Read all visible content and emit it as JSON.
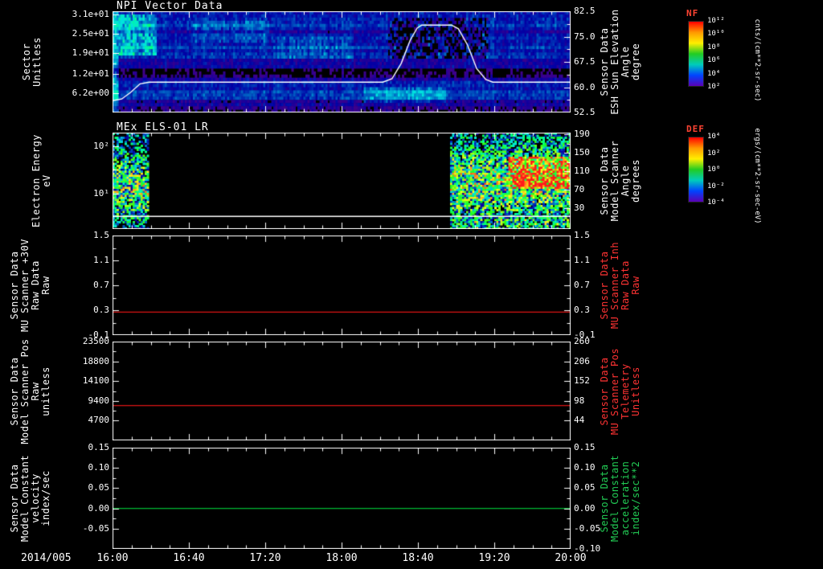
{
  "chart_data": {
    "xaxis": {
      "date_label": "2014/005",
      "ticks": [
        "16:00",
        "16:40",
        "17:20",
        "18:00",
        "18:40",
        "19:20",
        "20:00"
      ]
    },
    "colorbars": [
      {
        "title": "NF",
        "title_color": "#ff4433",
        "unit": "cnts/(cm**2-sr-sec)",
        "ticks": [
          "10¹²",
          "10¹⁰",
          "10⁸",
          "10⁶",
          "10⁴",
          "10²"
        ],
        "colors": [
          "#ff0000",
          "#ff9900",
          "#ffee00",
          "#22cc22",
          "#00ccbb",
          "#0044ff",
          "#5a00b4"
        ]
      },
      {
        "title": "DEF",
        "title_color": "#ff4433",
        "unit": "ergs/(cm**2-sr-sec-eV)",
        "ticks": [
          "10⁴",
          "10²",
          "10⁰",
          "10⁻²",
          "10⁻⁴"
        ],
        "colors": [
          "#ff0000",
          "#ff9900",
          "#ffee00",
          "#22cc22",
          "#00ccbb",
          "#0044ff",
          "#5a00b4"
        ]
      }
    ],
    "panels": [
      {
        "id": "npi-vector-data",
        "type": "heatmap",
        "title": "NPI Vector Data",
        "left_label": "Sector\nUnitless",
        "left_ticks": {
          "labels": [
            "3.1e+01",
            "2.5e+01",
            "1.9e+01",
            "1.2e+01",
            "6.2e+00"
          ],
          "fracs": [
            0.03,
            0.22,
            0.41,
            0.62,
            0.81
          ]
        },
        "right_ticks": {
          "labels": [
            "82.5",
            "75.0",
            "67.5",
            "60.0",
            "52.5"
          ],
          "fracs": [
            0,
            0.25,
            0.5,
            0.75,
            1
          ]
        },
        "right_label": "Sensor Data\nESH Sun Elevation\nAngle\ndegree",
        "right_label_color": "#ffffff",
        "overlay": {
          "color": "#ffffff",
          "yrange": [
            52.5,
            82.5
          ],
          "x": [
            0,
            0.02,
            0.04,
            0.06,
            0.08,
            0.59,
            0.61,
            0.63,
            0.65,
            0.665,
            0.675,
            0.74,
            0.755,
            0.775,
            0.795,
            0.815,
            0.83,
            1.0
          ],
          "v": [
            56,
            56.5,
            58.5,
            61,
            61.5,
            61.5,
            62.5,
            67,
            74,
            77.5,
            78.4,
            78.4,
            77.3,
            72.5,
            65.5,
            62.3,
            61.5,
            61.5
          ]
        },
        "heatmap": {
          "rows": 32,
          "cols": 228,
          "seed": 11,
          "base": 0.16,
          "noise": 0.05,
          "rowVar": 0.07,
          "colVar": 0.03,
          "thr": 0.035,
          "features": [
            {
              "x0": 0,
              "x1": 0.012,
              "add": 0.16,
              "noise": 0.05
            },
            {
              "x0": 0.012,
              "x1": 0.095,
              "y0": 0.03,
              "y1": 0.45,
              "add": 0.15,
              "noise": 0.09
            },
            {
              "x0": 0.6,
              "x1": 0.82,
              "y0": 0.06,
              "y1": 0.48,
              "add": -0.12,
              "noise": 0.17
            },
            {
              "x0": 0,
              "x1": 1,
              "y0": 0.56,
              "y1": 0.645,
              "add": -0.135,
              "noise": 0.01
            },
            {
              "x0": 0,
              "x1": 1,
              "y0": 0.86,
              "y1": 1,
              "add": -0.055,
              "noise": 0.02
            },
            {
              "x0": 0.55,
              "x1": 0.73,
              "y0": 0.74,
              "y1": 0.9,
              "add": 0.1,
              "noise": 0.03
            },
            {
              "x0": 0.17,
              "x1": 0.34,
              "y0": 0.1,
              "y1": 0.32,
              "add": 0.05,
              "noise": 0.03
            },
            {
              "x0": 0.36,
              "x1": 0.52,
              "y0": 0.26,
              "y1": 0.46,
              "add": 0.05,
              "noise": 0.03
            }
          ]
        }
      },
      {
        "id": "mex-els-01-lr",
        "type": "heatmap",
        "title": "MEx ELS-01 LR",
        "left_label": "Electron Energy\neV",
        "left_ticks": {
          "labels": [
            "10²",
            "10¹"
          ],
          "fracs": [
            0.14,
            0.63
          ]
        },
        "right_ticks": {
          "labels": [
            "190",
            "150",
            "110",
            "70",
            "30"
          ],
          "fracs": [
            0.02,
            0.21,
            0.4,
            0.59,
            0.78
          ]
        },
        "right_label": "Sensor Data\nModel Scanner\nAngle\ndegrees",
        "right_label_color": "#ffffff",
        "overlay": {
          "color": "#ffffff",
          "yrange": [
            -15,
            190
          ],
          "x": [
            0,
            1
          ],
          "v": [
            12,
            12
          ]
        },
        "heatmap": {
          "rows": 48,
          "cols": 228,
          "seed": 23,
          "base": 0,
          "noise": 0,
          "rowVar": 0,
          "colVar": 0,
          "thr": 0.1,
          "features": [
            {
              "x0": 0,
              "x1": 0.078,
              "add": 0.52,
              "noise": 0.42,
              "gauss": {
                "cy": 0.56,
                "sy": 0.26
              }
            },
            {
              "x0": 0.735,
              "x1": 1,
              "add": 0.55,
              "noise": 0.42,
              "gauss": {
                "cy": 0.52,
                "sy": 0.3
              }
            },
            {
              "x0": 0.865,
              "x1": 1,
              "y0": 0.26,
              "y1": 0.58,
              "add": 0.38,
              "noise": 0.18
            },
            {
              "x0": 0.735,
              "x1": 1,
              "y0": 0.9,
              "y1": 1,
              "add": 0.15,
              "noise": 0.1
            }
          ]
        }
      },
      {
        "id": "mu-scanner-30v",
        "type": "line",
        "left_label": "Sensor Data\nMU Scanner +30V\nRaw Data\nRaw",
        "left_ticks": {
          "labels": [
            "1.5",
            "1.1",
            "0.7",
            "0.3",
            "-0.1"
          ],
          "fracs": [
            0,
            0.25,
            0.5,
            0.75,
            1
          ]
        },
        "right_ticks": {
          "labels": [
            "1.5",
            "1.1",
            "0.7",
            "0.3",
            "-0.1"
          ],
          "fracs": [
            0,
            0.25,
            0.5,
            0.75,
            1
          ]
        },
        "right_label": "Sensor Data\nMU Scanner Inh\nRaw Data\nRaw",
        "right_label_color": "#ff3333",
        "line": {
          "color": "#dd1515",
          "yrange": [
            -0.1,
            1.5
          ],
          "value": 0.27
        }
      },
      {
        "id": "model-scanner-pos",
        "type": "line",
        "left_label": "Sensor Data\nModel Scanner Pos\nRaw\nunitless",
        "left_ticks": {
          "labels": [
            "23500",
            "18800",
            "14100",
            "9400",
            "4700"
          ],
          "fracs": [
            0,
            0.2,
            0.4,
            0.6,
            0.8
          ]
        },
        "right_ticks": {
          "labels": [
            "260",
            "206",
            "152",
            "98",
            "44"
          ],
          "fracs": [
            0,
            0.2,
            0.4,
            0.6,
            0.8
          ]
        },
        "right_label": "Sensor Data\nMU Scanner Pos\nTelemetry\nUnitless",
        "right_label_color": "#ff3333",
        "line": {
          "color": "#dd1515",
          "yrange": [
            0,
            23500
          ],
          "value": 8300
        }
      },
      {
        "id": "model-constant",
        "type": "line",
        "left_label": "Sensor Data\nModel Constant\nvelocity\nindex/sec",
        "left_ticks": {
          "labels": [
            "0.15",
            "0.10",
            "0.05",
            "0.00",
            "-0.05"
          ],
          "fracs": [
            0,
            0.2,
            0.4,
            0.6,
            0.8
          ]
        },
        "right_ticks": {
          "labels": [
            "0.15",
            "0.10",
            "0.05",
            "0.00",
            "-0.05",
            "-0.10"
          ],
          "fracs": [
            0,
            0.2,
            0.4,
            0.6,
            0.8,
            1
          ]
        },
        "right_label": "Sensor Data\nModel Constant\nacceleration\nindex/sec**2",
        "right_label_color": "#22cc55",
        "line": {
          "color": "#00bb33",
          "yrange": [
            -0.1,
            0.15
          ],
          "value": 0
        }
      }
    ]
  }
}
